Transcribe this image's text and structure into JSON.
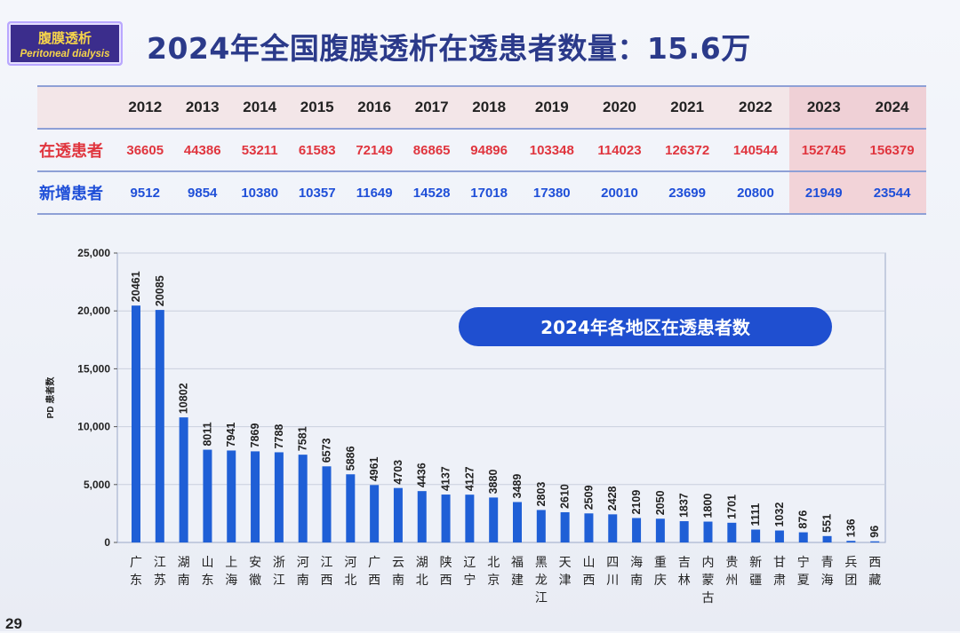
{
  "badge": {
    "cn": "腹膜透析",
    "en": "Peritoneal dialysis"
  },
  "title": "2024年全国腹膜透析在透患者数量：15.6万",
  "table": {
    "years": [
      "2012",
      "2013",
      "2014",
      "2015",
      "2016",
      "2017",
      "2018",
      "2019",
      "2020",
      "2021",
      "2022",
      "2023",
      "2024"
    ],
    "active_label": "在透患者",
    "active": [
      "36605",
      "44386",
      "53211",
      "61583",
      "72149",
      "86865",
      "94896",
      "103348",
      "114023",
      "126372",
      "140544",
      "152745",
      "156379"
    ],
    "new_label": "新增患者",
    "new": [
      "9512",
      "9854",
      "10380",
      "10357",
      "11649",
      "14528",
      "17018",
      "17380",
      "20010",
      "23699",
      "20800",
      "21949",
      "23544"
    ]
  },
  "page_number": "29",
  "chart_data": {
    "type": "bar",
    "title": "2024年各地区在透患者数",
    "ylabel": "PD 患者数",
    "xlabel": "",
    "ylim": [
      0,
      25000
    ],
    "yticks": [
      "0",
      "5,000",
      "10,000",
      "15,000",
      "20,000",
      "25,000"
    ],
    "grid": true,
    "bar_color": "#1f5fd6",
    "categories": [
      "广东",
      "江苏",
      "湖南",
      "山东",
      "上海",
      "安徽",
      "浙江",
      "河南",
      "江西",
      "河北",
      "广西",
      "云南",
      "湖北",
      "陕西",
      "辽宁",
      "北京",
      "福建",
      "黑龙江",
      "天津",
      "山西",
      "四川",
      "海南",
      "重庆",
      "吉林",
      "内蒙古",
      "贵州",
      "新疆",
      "甘肃",
      "宁夏",
      "青海",
      "兵团",
      "西藏"
    ],
    "values": [
      20461,
      20085,
      10802,
      8011,
      7941,
      7869,
      7788,
      7581,
      6573,
      5886,
      4961,
      4703,
      4436,
      4137,
      4127,
      3880,
      3489,
      2803,
      2610,
      2509,
      2428,
      2109,
      2050,
      1837,
      1800,
      1701,
      1111,
      1032,
      876,
      551,
      136,
      96
    ]
  }
}
